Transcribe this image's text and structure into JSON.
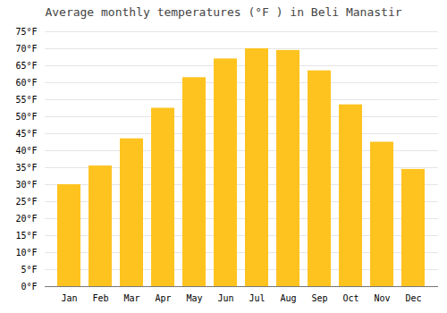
{
  "chart_data": {
    "type": "bar",
    "title": "Average monthly temperatures (°F ) in Beli Manastir",
    "categories": [
      "Jan",
      "Feb",
      "Mar",
      "Apr",
      "May",
      "Jun",
      "Jul",
      "Aug",
      "Sep",
      "Oct",
      "Nov",
      "Dec"
    ],
    "values": [
      30,
      35.5,
      43.5,
      52.5,
      61.5,
      67,
      70,
      69.5,
      63.5,
      53.5,
      42.5,
      34.5
    ],
    "color": "#FFC320",
    "ylim": [
      0,
      75
    ],
    "yticks": [
      {
        "value": 0,
        "label": "0°F"
      },
      {
        "value": 5,
        "label": "5°F"
      },
      {
        "value": 10,
        "label": "10°F"
      },
      {
        "value": 15,
        "label": "15°F"
      },
      {
        "value": 20,
        "label": "20°F"
      },
      {
        "value": 25,
        "label": "25°F"
      },
      {
        "value": 30,
        "label": "30°F"
      },
      {
        "value": 35,
        "label": "35°F"
      },
      {
        "value": 40,
        "label": "40°F"
      },
      {
        "value": 45,
        "label": "45°F"
      },
      {
        "value": 50,
        "label": "50°F"
      },
      {
        "value": 55,
        "label": "55°F"
      },
      {
        "value": 60,
        "label": "60°F"
      },
      {
        "value": 65,
        "label": "65°F"
      },
      {
        "value": 70,
        "label": "70°F"
      },
      {
        "value": 75,
        "label": "75°F"
      }
    ],
    "grid": true
  }
}
